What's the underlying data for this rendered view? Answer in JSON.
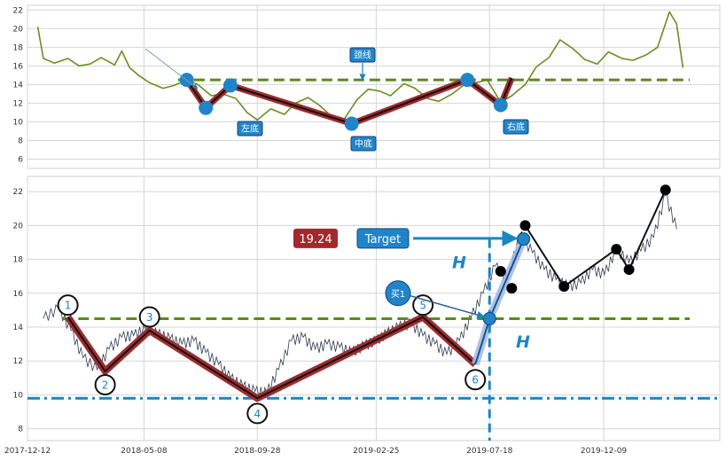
{
  "chart_data": [
    {
      "type": "line",
      "panel": "top",
      "ylim": [
        5,
        22.5
      ],
      "y_ticks": [
        6,
        8,
        10,
        12,
        14,
        16,
        18,
        20,
        22
      ],
      "grid": true,
      "series": [
        {
          "color": "#6b8e23",
          "x": [
            "2017-12-25",
            "2018-01-01",
            "2018-01-15",
            "2018-02-01",
            "2018-02-15",
            "2018-03-01",
            "2018-03-15",
            "2018-04-01",
            "2018-04-10",
            "2018-04-20",
            "2018-05-01",
            "2018-05-15",
            "2018-06-01",
            "2018-06-15",
            "2018-07-01",
            "2018-07-15",
            "2018-08-01",
            "2018-08-15",
            "2018-09-01",
            "2018-09-15",
            "2018-09-28",
            "2018-10-15",
            "2018-11-01",
            "2018-11-15",
            "2018-12-01",
            "2018-12-15",
            "2019-01-01",
            "2019-01-15",
            "2019-02-01",
            "2019-02-15",
            "2019-03-01",
            "2019-03-15",
            "2019-04-01",
            "2019-04-15",
            "2019-05-01",
            "2019-05-15",
            "2019-06-01",
            "2019-06-15",
            "2019-07-01",
            "2019-07-15",
            "2019-08-01",
            "2019-08-15",
            "2019-09-01",
            "2019-09-15",
            "2019-10-01",
            "2019-10-15",
            "2019-11-01",
            "2019-11-15",
            "2019-12-01",
            "2019-12-15",
            "2020-01-01",
            "2020-01-15",
            "2020-02-01",
            "2020-02-15",
            "2020-03-01",
            "2020-03-10",
            "2020-03-18"
          ],
          "y": [
            20.2,
            16.8,
            16.3,
            16.8,
            16.0,
            16.2,
            16.9,
            16.1,
            17.6,
            15.8,
            15.0,
            14.2,
            13.6,
            13.9,
            14.5,
            14.0,
            12.8,
            13.0,
            12.5,
            11.0,
            10.2,
            11.4,
            10.8,
            12.0,
            12.6,
            11.8,
            10.5,
            10.2,
            12.4,
            13.5,
            13.3,
            12.8,
            14.1,
            13.6,
            12.5,
            12.2,
            13.0,
            13.9,
            14.2,
            14.5,
            12.1,
            12.8,
            14.0,
            15.9,
            16.9,
            18.8,
            17.8,
            16.7,
            16.2,
            17.5,
            16.8,
            16.6,
            17.2,
            18.0,
            21.8,
            20.5,
            15.8
          ]
        }
      ],
      "neckline_y": 14.5,
      "pattern_points": [
        {
          "date": "2018-07-01",
          "price": 14.5
        },
        {
          "date": "2018-07-25",
          "price": 11.5
        },
        {
          "date": "2018-08-25",
          "price": 13.9
        },
        {
          "date": "2019-01-25",
          "price": 9.8
        },
        {
          "date": "2019-06-20",
          "price": 14.5
        },
        {
          "date": "2019-08-01",
          "price": 11.8
        },
        {
          "date": "2019-08-15",
          "price": 14.7
        }
      ],
      "labels": {
        "left_bottom": "左底",
        "middle_bottom": "中底",
        "right_bottom": "右底",
        "neckline": "颈线"
      }
    },
    {
      "type": "line",
      "panel": "bottom",
      "ylim": [
        7.3,
        22.9
      ],
      "y_ticks": [
        8,
        10,
        12,
        14,
        16,
        18,
        20,
        22
      ],
      "x_ticks": [
        "2017-12-12",
        "2018-05-08",
        "2018-09-28",
        "2019-02-25",
        "2019-07-18",
        "2019-12-09"
      ],
      "grid": true,
      "series": [
        {
          "color": "#2f3b52",
          "x": [
            "2018-01-01",
            "2018-01-20",
            "2018-02-05",
            "2018-02-20",
            "2018-03-10",
            "2018-03-25",
            "2018-04-10",
            "2018-04-25",
            "2018-05-10",
            "2018-05-25",
            "2018-06-10",
            "2018-06-25",
            "2018-07-10",
            "2018-07-25",
            "2018-08-10",
            "2018-08-25",
            "2018-09-10",
            "2018-09-25",
            "2018-10-10",
            "2018-10-25",
            "2018-11-10",
            "2018-11-25",
            "2018-12-10",
            "2018-12-25",
            "2019-01-10",
            "2019-01-25",
            "2019-02-10",
            "2019-02-25",
            "2019-03-10",
            "2019-03-25",
            "2019-04-10",
            "2019-04-25",
            "2019-05-10",
            "2019-05-25",
            "2019-06-10",
            "2019-06-25",
            "2019-07-10",
            "2019-07-25",
            "2019-08-10",
            "2019-08-25",
            "2019-09-10",
            "2019-09-25",
            "2019-10-10",
            "2019-10-25",
            "2019-11-10",
            "2019-11-25",
            "2019-12-10",
            "2019-12-25",
            "2020-01-10",
            "2020-01-25",
            "2020-02-10",
            "2020-02-25",
            "2020-03-10"
          ],
          "y": [
            14.5,
            15.1,
            13.8,
            12.2,
            11.5,
            12.7,
            13.4,
            13.5,
            13.9,
            13.6,
            13.3,
            13.0,
            13.2,
            12.5,
            11.8,
            11.0,
            10.5,
            10.2,
            10.1,
            11.5,
            13.2,
            13.4,
            12.7,
            13.0,
            12.8,
            12.5,
            12.9,
            13.2,
            13.6,
            14.0,
            14.2,
            13.5,
            13.0,
            12.4,
            13.2,
            14.6,
            16.0,
            17.6,
            16.8,
            19.5,
            18.4,
            17.4,
            16.8,
            16.4,
            16.6,
            17.4,
            17.1,
            18.6,
            17.8,
            18.5,
            19.3,
            21.8,
            19.8
          ]
        }
      ],
      "neckline_y": 14.5,
      "support_y": 9.8,
      "numbered_points": [
        {
          "label": "1",
          "date": "2018-02-01",
          "price": 15.3
        },
        {
          "label": "2",
          "date": "2018-03-20",
          "price": 10.6
        },
        {
          "label": "3",
          "date": "2018-05-15",
          "price": 14.6
        },
        {
          "label": "4",
          "date": "2018-09-28",
          "price": 8.9
        },
        {
          "label": "5",
          "date": "2019-04-25",
          "price": 15.3
        },
        {
          "label": "6",
          "date": "2019-06-30",
          "price": 10.9
        }
      ],
      "pattern_path": [
        {
          "date": "2018-02-01",
          "price": 14.6
        },
        {
          "date": "2018-03-20",
          "price": 11.4
        },
        {
          "date": "2018-05-15",
          "price": 13.8
        },
        {
          "date": "2018-09-28",
          "price": 9.8
        },
        {
          "date": "2019-04-25",
          "price": 14.6
        },
        {
          "date": "2019-06-30",
          "price": 11.8
        },
        {
          "date": "2019-07-18",
          "price": 14.5
        },
        {
          "date": "2019-08-30",
          "price": 19.2
        }
      ],
      "black_points": [
        {
          "date": "2019-08-01",
          "price": 17.3
        },
        {
          "date": "2019-08-15",
          "price": 16.3
        },
        {
          "date": "2019-09-01",
          "price": 20.0
        },
        {
          "date": "2019-10-20",
          "price": 16.4
        },
        {
          "date": "2019-12-25",
          "price": 18.6
        },
        {
          "date": "2020-01-10",
          "price": 17.4
        },
        {
          "date": "2020-02-25",
          "price": 22.1
        }
      ],
      "black_path": [
        {
          "date": "2019-09-01",
          "price": 20.0
        },
        {
          "date": "2019-10-20",
          "price": 16.4
        },
        {
          "date": "2019-12-25",
          "price": 18.6
        },
        {
          "date": "2020-01-10",
          "price": 17.4
        },
        {
          "date": "2020-02-25",
          "price": 22.1
        }
      ],
      "buy_point": {
        "date": "2019-07-18",
        "price": 14.5,
        "label": "买1"
      },
      "annotations": {
        "price_box": "19.24",
        "target_box": "Target",
        "h_label_1": "H",
        "h_label_2": "H"
      }
    }
  ],
  "colors": {
    "price_box_bg": "#a3282d",
    "target_box_bg": "#2184c8",
    "neckline": "#5a8a1e",
    "support": "#1a86c2",
    "pattern_red": "#9e2c2f",
    "pattern_blue": "#3c86c6",
    "grid": "#d6d6d6"
  }
}
